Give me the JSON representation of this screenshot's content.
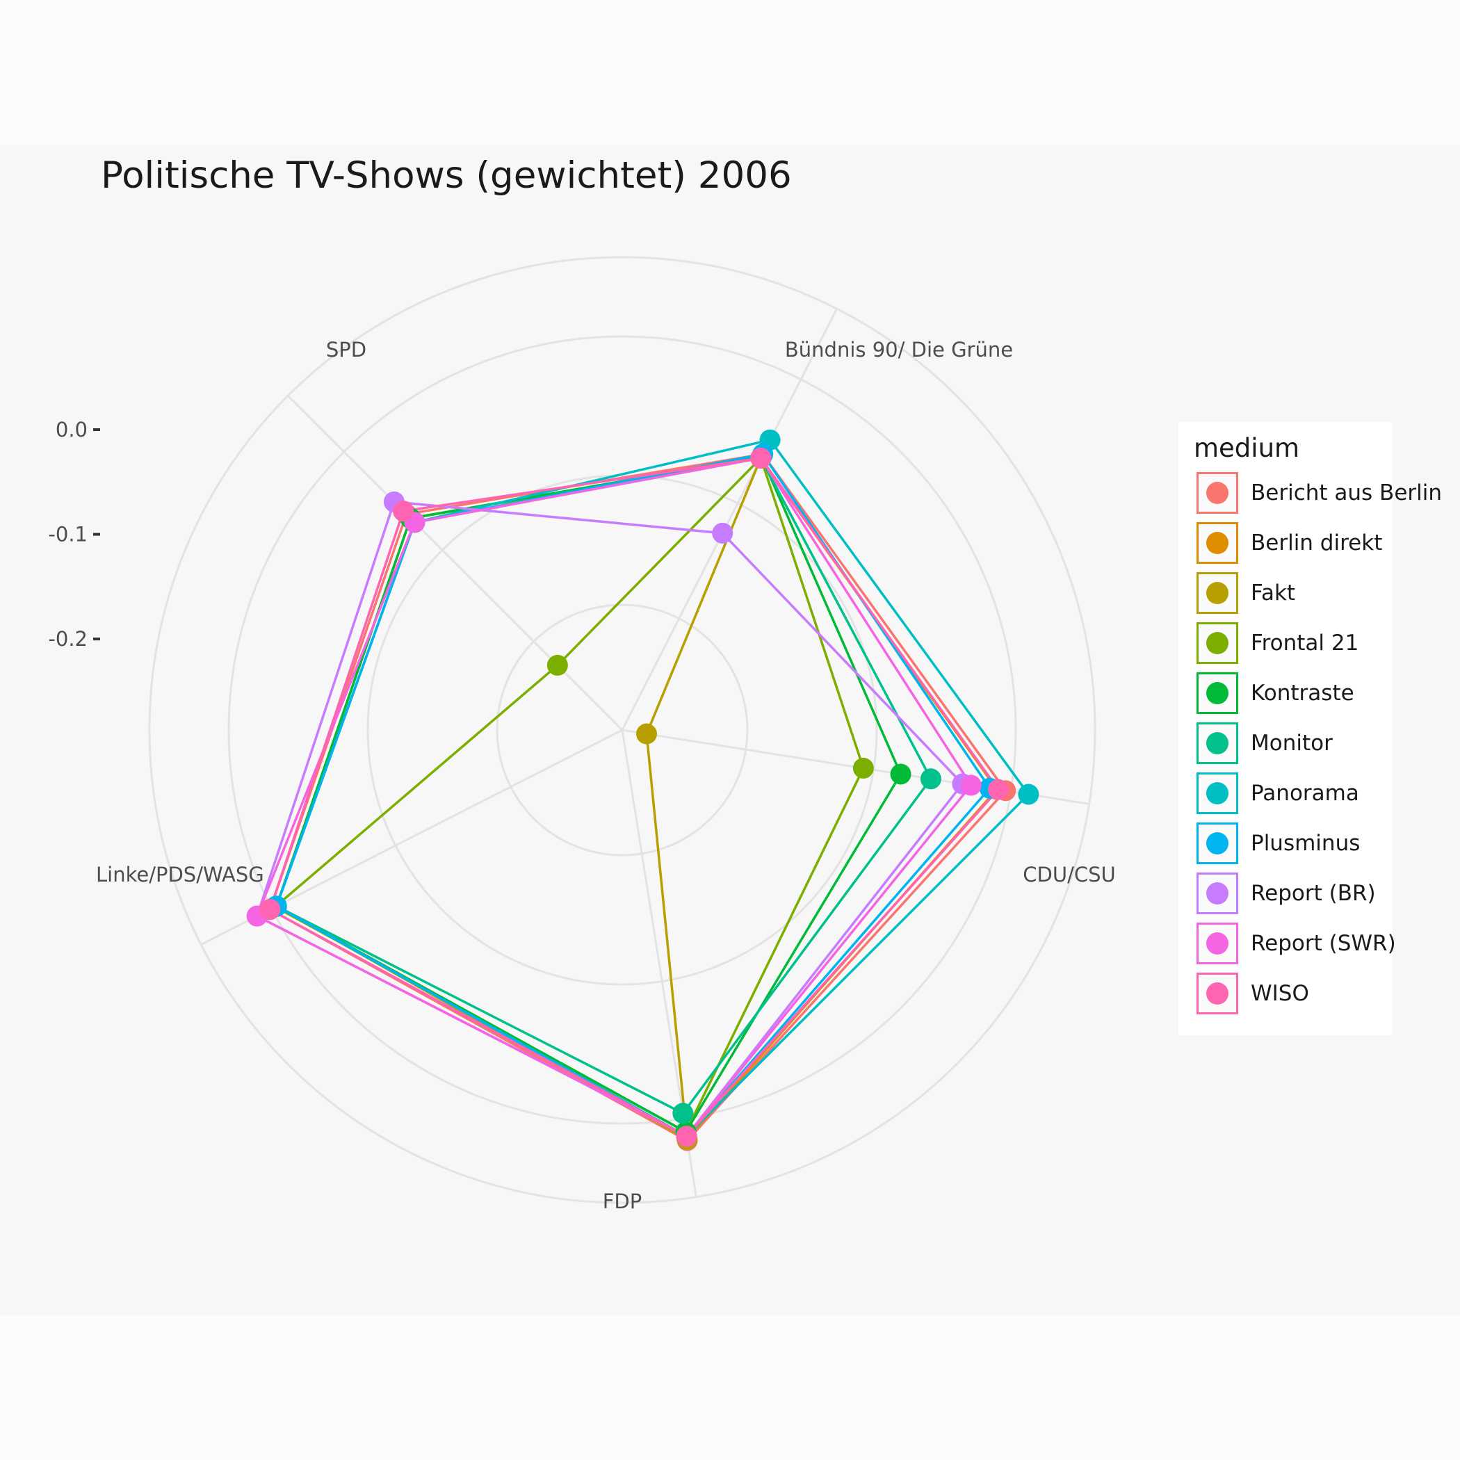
{
  "chart_data": {
    "type": "radar",
    "title": "Politische TV-Shows (gewichtet) 2006",
    "axes": [
      "SPD",
      "Bündnis 90/ Die Grüne",
      "CDU/CSU",
      "FDP",
      "Linke/PDS/WASG"
    ],
    "radial_ticks": [
      "0.0",
      "-0.1",
      "-0.2"
    ],
    "radial_tick_values": [
      0.0,
      -0.1,
      -0.2
    ],
    "rlim": [
      -0.275,
      0.0
    ],
    "grid": true,
    "legend": {
      "title": "medium",
      "position": "right"
    },
    "series": [
      {
        "name": "Bericht aus Berlin",
        "color": "#F8766D",
        "values": [
          -0.077,
          -0.074,
          -0.02,
          -0.001,
          -0.015
        ]
      },
      {
        "name": "Berlin direkt",
        "color": "#DE8C00",
        "values": [
          -0.081,
          -0.077,
          -0.026,
          -0.002,
          -0.02
        ]
      },
      {
        "name": "Fakt",
        "color": "#B79F00",
        "values": [
          -0.081,
          -0.077,
          -0.27,
          -0.002,
          -0.02
        ]
      },
      {
        "name": "Frontal 21",
        "color": "#7CAE00",
        "values": [
          -0.224,
          -0.077,
          -0.119,
          -0.007,
          -0.019
        ]
      },
      {
        "name": "Kontraste",
        "color": "#00BA38",
        "values": [
          -0.081,
          -0.076,
          -0.093,
          -0.007,
          -0.02
        ]
      },
      {
        "name": "Monitor",
        "color": "#00C08B",
        "values": [
          -0.085,
          -0.077,
          -0.072,
          -0.02,
          -0.02
        ]
      },
      {
        "name": "Panorama",
        "color": "#00BFC4",
        "values": [
          -0.085,
          -0.063,
          -0.004,
          -0.004,
          -0.02
        ]
      },
      {
        "name": "Plusminus",
        "color": "#00B4F0",
        "values": [
          -0.085,
          -0.074,
          -0.031,
          -0.004,
          -0.02
        ]
      },
      {
        "name": "Report (BR)",
        "color": "#C77CFF",
        "values": [
          -0.065,
          -0.135,
          -0.05,
          -0.004,
          -0.005
        ]
      },
      {
        "name": "Report (SWR)",
        "color": "#F564E3",
        "values": [
          -0.085,
          -0.077,
          -0.044,
          -0.004,
          -0.005
        ]
      },
      {
        "name": "WISO",
        "color": "#FF64B0",
        "values": [
          -0.074,
          -0.077,
          -0.025,
          -0.004,
          -0.015
        ]
      }
    ]
  }
}
